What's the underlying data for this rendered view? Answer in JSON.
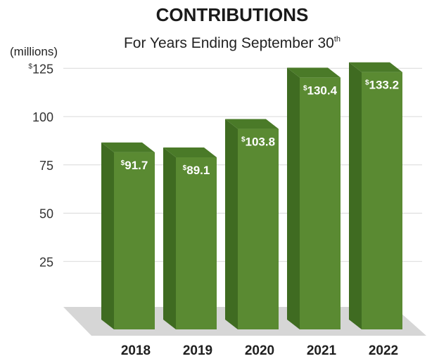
{
  "chart_data": {
    "type": "bar",
    "title": "CONTRIBUTIONS",
    "subtitle": "For Years Ending September 30",
    "subtitle_superscript": "th",
    "unit_label": "(millions)",
    "categories": [
      "2018",
      "2019",
      "2020",
      "2021",
      "2022"
    ],
    "values": [
      91.7,
      89.1,
      103.8,
      130.4,
      133.2
    ],
    "data_labels": [
      "91.7",
      "89.1",
      "103.8",
      "130.4",
      "133.2"
    ],
    "currency_symbol": "$",
    "y_ticks": [
      "25",
      "50",
      "75",
      "100",
      "125"
    ],
    "y_tick_values": [
      25,
      50,
      75,
      100,
      125
    ],
    "top_tick_currency": "$",
    "ylim": [
      0,
      125
    ],
    "grid": true,
    "style": "3d-bar"
  },
  "colors": {
    "title": "#1a1a1a",
    "bar_front": "#5a8a32",
    "bar_side": "#3f6b21",
    "bar_top": "#4a7a28",
    "grid": "#d9d9d9",
    "floor": "#d6d6d6"
  }
}
